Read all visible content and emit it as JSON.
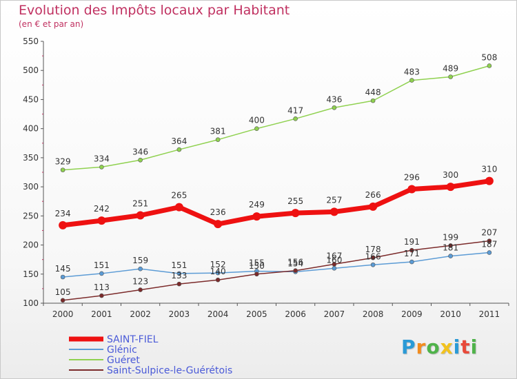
{
  "title": "Evolution des Impôts locaux par Habitant",
  "subtitle": "(en € et par an)",
  "logo": {
    "text": "Proxiti",
    "letters": [
      {
        "ch": "P",
        "color": "#2a9ad6"
      },
      {
        "ch": "r",
        "color": "#f28c1e"
      },
      {
        "ch": "o",
        "color": "#4fb34a"
      },
      {
        "ch": "x",
        "color": "#f2c21e"
      },
      {
        "ch": "i",
        "color": "#2a9ad6"
      },
      {
        "ch": "t",
        "color": "#e84a3a"
      },
      {
        "ch": "i",
        "color": "#4fb34a"
      }
    ]
  },
  "chart_data": {
    "type": "line",
    "x": [
      "2000",
      "2001",
      "2002",
      "2003",
      "2004",
      "2005",
      "2006",
      "2007",
      "2008",
      "2009",
      "2010",
      "2011"
    ],
    "ylim": [
      100,
      550
    ],
    "yticks": [
      100,
      150,
      200,
      250,
      300,
      350,
      400,
      450,
      500,
      550
    ],
    "grid": false,
    "legend": "bottom-left",
    "series": [
      {
        "name": "SAINT-FIEL",
        "color": "#ee1111",
        "thick": true,
        "values": [
          234,
          242,
          251,
          265,
          236,
          249,
          255,
          257,
          266,
          296,
          300,
          310
        ],
        "labels": [
          "234",
          "242",
          "251",
          "265",
          "236",
          "249",
          "255",
          "257",
          "266",
          "296",
          "300",
          "310"
        ]
      },
      {
        "name": "Glénic",
        "color": "#5b9bd5",
        "thick": false,
        "values": [
          145,
          151,
          159,
          151,
          152,
          155,
          154,
          160,
          166,
          171,
          181,
          187
        ],
        "labels": [
          "145",
          "151",
          "159",
          "151",
          "152",
          "155",
          "154",
          "160",
          "166",
          "171",
          "181",
          "187"
        ]
      },
      {
        "name": "Guéret",
        "color": "#8fd14f",
        "thick": false,
        "values": [
          329,
          334,
          346,
          364,
          381,
          400,
          417,
          436,
          448,
          483,
          489,
          508
        ],
        "labels": [
          "329",
          "334",
          "346",
          "364",
          "381",
          "400",
          "417",
          "436",
          "448",
          "483",
          "489",
          "508"
        ]
      },
      {
        "name": "Saint-Sulpice-le-Guérétois",
        "color": "#7b2a2a",
        "thick": false,
        "values": [
          105,
          113,
          123,
          133,
          140,
          150,
          156,
          167,
          178,
          191,
          199,
          207
        ],
        "labels": [
          "105",
          "113",
          "123",
          "133",
          "140",
          "150",
          "156",
          "167",
          "178",
          "191",
          "199",
          "207"
        ]
      }
    ]
  }
}
